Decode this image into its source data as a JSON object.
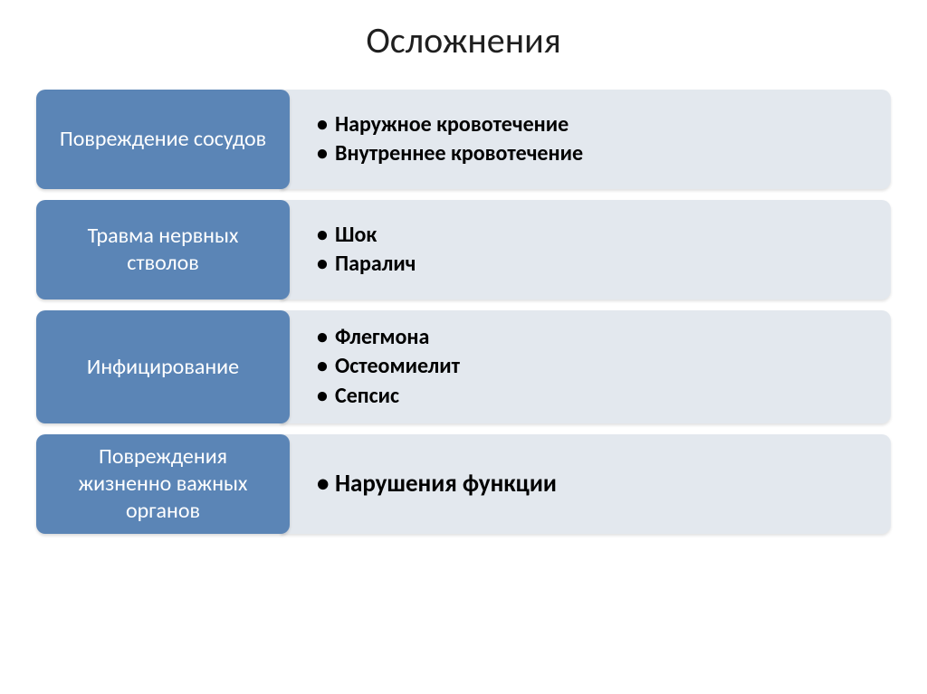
{
  "title": "Осложнения",
  "label_bg": "#5b85b6",
  "content_bg": "#e3e8ee",
  "title_fontsize": 40,
  "label_fontsize": 24,
  "bullet_fontsize": 24,
  "bullet_bold_fontsize": 27,
  "label_color": "#ffffff",
  "bullet_color": "#000000",
  "rows": [
    {
      "label": "Повреждение сосудов",
      "bullets": [
        "Наружное кровотечение",
        "Внутреннее кровотечение"
      ],
      "bold": false
    },
    {
      "label": "Травма нервных стволов",
      "bullets": [
        "Шок",
        "Паралич"
      ],
      "bold": false
    },
    {
      "label": "Инфицирование",
      "bullets": [
        "Флегмона",
        "Остеомиелит",
        "Сепсис"
      ],
      "bold": false
    },
    {
      "label": "Повреждения жизненно важных органов",
      "bullets": [
        "Нарушения функции"
      ],
      "bold": true
    }
  ]
}
